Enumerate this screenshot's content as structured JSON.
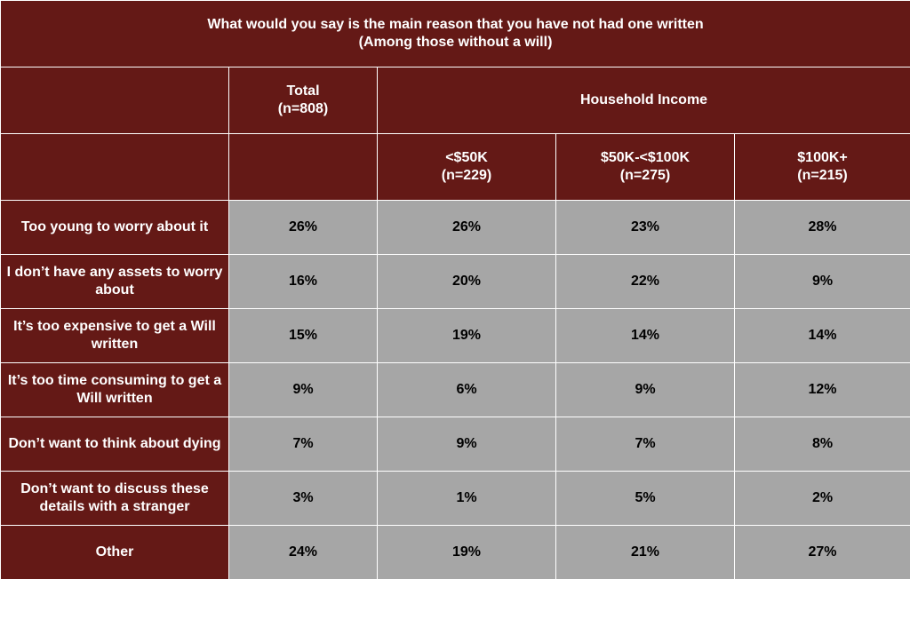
{
  "chart_data": {
    "type": "table",
    "title": "What would you say is the main reason that you have not had one written\n(Among those without a will)",
    "total_header": "Total\n(n=808)",
    "group_header": "Household Income",
    "subgroups": [
      "<$50K\n(n=229)",
      "$50K-<$100K\n(n=275)",
      "$100K+\n(n=215)"
    ],
    "rows": [
      {
        "label": "Too young to worry about it",
        "values": [
          "26%",
          "26%",
          "23%",
          "28%"
        ]
      },
      {
        "label": "I don’t have any assets to worry about",
        "values": [
          "16%",
          "20%",
          "22%",
          "9%"
        ]
      },
      {
        "label": "It’s too expensive to get a Will written",
        "values": [
          "15%",
          "19%",
          "14%",
          "14%"
        ]
      },
      {
        "label": "It’s too time consuming to get a Will written",
        "values": [
          "9%",
          "6%",
          "9%",
          "12%"
        ]
      },
      {
        "label": "Don’t want to think about dying",
        "values": [
          "7%",
          "9%",
          "7%",
          "8%"
        ]
      },
      {
        "label": "Don’t want to discuss these details with a stranger",
        "values": [
          "3%",
          "1%",
          "5%",
          "2%"
        ]
      },
      {
        "label": "Other",
        "values": [
          "24%",
          "19%",
          "21%",
          "27%"
        ]
      }
    ]
  },
  "colors": {
    "header_bg": "#641916",
    "cell_bg": "#a6a6a6",
    "border": "#ffffff"
  }
}
